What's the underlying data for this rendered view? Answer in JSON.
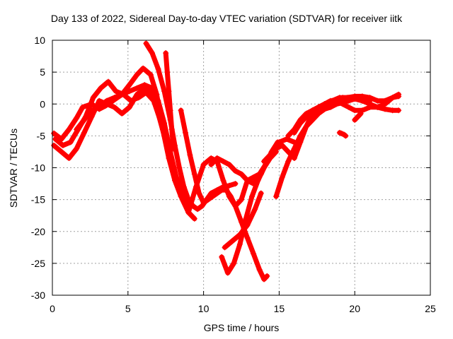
{
  "chart_data": {
    "type": "scatter",
    "title": "Day 133 of 2022, Sidereal Day-to-day VTEC variation (SDTVAR) for receiver iitk",
    "xlabel": "GPS time / hours",
    "ylabel": "SDTVAR / TECUs",
    "xlim": [
      0,
      25
    ],
    "ylim": [
      -30,
      10
    ],
    "xticks": [
      "0",
      "5",
      "10",
      "15",
      "20",
      "25"
    ],
    "yticks": [
      "10",
      "5",
      "0",
      "-5",
      "-10",
      "-15",
      "-20",
      "-25",
      "-30"
    ],
    "grid": true,
    "marker": "+",
    "color": "#ff0000",
    "series": [
      {
        "x": [
          0.1,
          0.6,
          1.1,
          1.6,
          2.0,
          2.6,
          3.1,
          3.5,
          4.0,
          4.6,
          5.1,
          5.6,
          6.0,
          6.5,
          6.9,
          7.3,
          7.7,
          8.1,
          8.5,
          8.9
        ],
        "y": [
          -4.6,
          -5.5,
          -4.0,
          -2.2,
          -0.5,
          0.0,
          -0.8,
          -0.3,
          0.5,
          1.5,
          3.0,
          4.6,
          5.6,
          4.6,
          1.5,
          -4.0,
          -8.5,
          -12.0,
          -14.5,
          -16.0
        ]
      },
      {
        "x": [
          0.1,
          0.6,
          1.1,
          1.6,
          2.1,
          2.6,
          3.1,
          3.6,
          4.1,
          4.6,
          5.1,
          5.6,
          6.1,
          6.6,
          7.0,
          7.4,
          7.8,
          8.2,
          8.6,
          9.0,
          9.4
        ],
        "y": [
          -6.5,
          -7.5,
          -8.5,
          -7.0,
          -4.5,
          -2.0,
          0.5,
          0.0,
          -0.5,
          -1.5,
          -0.5,
          1.5,
          2.5,
          1.5,
          -1.5,
          -5.0,
          -9.0,
          -12.5,
          -15.0,
          -17.0,
          -18.0
        ]
      },
      {
        "x": [
          0.2,
          0.7,
          1.2,
          1.7,
          2.2,
          2.7,
          3.2,
          3.7,
          4.2,
          4.7,
          5.2,
          5.7,
          6.2,
          6.7,
          7.2,
          7.6,
          8.0,
          8.4,
          8.8
        ],
        "y": [
          -5.5,
          -6.5,
          -6.0,
          -4.0,
          -2.0,
          1.0,
          2.5,
          3.5,
          2.0,
          1.5,
          0.5,
          1.0,
          1.8,
          0.5,
          -3.0,
          -6.5,
          -10.5,
          -13.5,
          -15.5
        ]
      },
      {
        "x": [
          1.6,
          2.1,
          2.6,
          3.1,
          3.6,
          4.1,
          4.6,
          5.1,
          5.6,
          6.1,
          6.6,
          7.0,
          7.4,
          7.8,
          8.2,
          8.6
        ],
        "y": [
          -4.0,
          -2.5,
          -1.0,
          -0.5,
          0.5,
          1.0,
          1.5,
          2.0,
          2.5,
          3.0,
          2.5,
          0.5,
          -3.0,
          -7.5,
          -11.5,
          -14.0
        ]
      },
      {
        "x": [
          6.2,
          6.6,
          7.0,
          7.4,
          7.8,
          8.1,
          8.4,
          8.7,
          9.0,
          9.3,
          9.6,
          9.9,
          10.2,
          10.5,
          10.9,
          11.3,
          11.7,
          12.1
        ],
        "y": [
          9.5,
          8.0,
          5.5,
          2.0,
          -2.5,
          -6.5,
          -10.0,
          -13.0,
          -15.0,
          -16.0,
          -16.5,
          -16.0,
          -15.0,
          -14.0,
          -13.5,
          -13.0,
          -12.8,
          -12.5
        ]
      },
      {
        "x": [
          7.5,
          7.6,
          7.7,
          7.8,
          7.9,
          8.0
        ],
        "y": [
          8.0,
          5.0,
          2.0,
          -1.0,
          -4.0,
          -7.0
        ]
      },
      {
        "x": [
          8.5,
          8.8,
          9.1,
          9.4,
          9.7,
          10.0,
          10.3,
          10.6,
          10.9,
          11.2,
          11.5,
          11.8,
          12.1,
          12.5,
          12.9,
          13.3,
          13.7,
          14.0,
          14.2
        ],
        "y": [
          -1.0,
          -4.5,
          -8.0,
          -11.0,
          -14.0,
          -15.5,
          -15.0,
          -14.5,
          -14.0,
          -13.5,
          -13.5,
          -14.5,
          -16.0,
          -18.5,
          -21.0,
          -23.5,
          -26.0,
          -27.5,
          -27.0
        ]
      },
      {
        "x": [
          9.0,
          9.5,
          10.0,
          10.5,
          10.9,
          11.3,
          11.7,
          12.1,
          12.5,
          12.9,
          13.3,
          13.7,
          14.1,
          14.5,
          14.9
        ],
        "y": [
          -17.0,
          -13.0,
          -9.5,
          -8.5,
          -9.0,
          -12.0,
          -14.5,
          -16.0,
          -15.0,
          -12.0,
          -11.5,
          -11.0,
          -9.5,
          -7.5,
          -6.0
        ]
      },
      {
        "x": [
          10.5,
          10.9,
          11.3,
          11.7,
          12.1,
          12.5,
          12.9,
          13.3,
          13.8,
          14.2,
          14.6,
          15.0,
          15.5,
          16.0
        ],
        "y": [
          -9.5,
          -8.5,
          -9.0,
          -9.5,
          -10.5,
          -11.0,
          -12.0,
          -12.5,
          -11.0,
          -9.0,
          -7.5,
          -6.0,
          -5.5,
          -6.0
        ]
      },
      {
        "x": [
          11.2,
          11.6,
          12.0,
          12.4,
          12.8,
          13.2,
          13.6,
          14.0,
          14.4,
          14.8
        ],
        "y": [
          -24.0,
          -26.5,
          -25.0,
          -22.0,
          -18.0,
          -14.5,
          -12.0,
          -10.0,
          -8.5,
          -7.5
        ]
      },
      {
        "x": [
          11.4,
          11.9,
          12.4,
          12.9,
          13.4,
          13.8
        ],
        "y": [
          -22.5,
          -21.5,
          -20.5,
          -19.0,
          -16.5,
          -14.0
        ]
      },
      {
        "x": [
          14.0,
          14.4,
          14.8,
          15.2,
          15.6,
          16.0,
          16.4,
          16.8,
          17.2,
          17.6,
          18.0,
          18.4,
          18.8,
          19.2,
          19.6,
          20.0,
          20.5,
          21.0,
          21.5,
          22.0,
          22.5,
          22.9
        ],
        "y": [
          -9.0,
          -8.0,
          -7.0,
          -6.5,
          -7.5,
          -8.5,
          -6.0,
          -3.5,
          -1.5,
          -0.5,
          0.0,
          0.5,
          0.5,
          0.0,
          -0.5,
          -1.0,
          -1.0,
          -0.5,
          -0.5,
          0.0,
          1.0,
          1.5
        ]
      },
      {
        "x": [
          14.8,
          15.2,
          15.6,
          16.0,
          16.4,
          16.8,
          17.2,
          17.6,
          18.0,
          18.4,
          18.8,
          19.2,
          19.6,
          20.0,
          20.5,
          21.0,
          21.5,
          22.0,
          22.5,
          22.9
        ],
        "y": [
          -14.5,
          -11.5,
          -9.0,
          -7.0,
          -5.0,
          -3.5,
          -2.5,
          -1.5,
          -0.8,
          -0.5,
          0.0,
          0.2,
          0.5,
          0.8,
          0.5,
          0.0,
          -0.5,
          -0.8,
          -1.0,
          -1.0
        ]
      },
      {
        "x": [
          15.6,
          16.0,
          16.4,
          16.8,
          17.2,
          17.6,
          18.0,
          18.4,
          18.8,
          19.2,
          19.6,
          20.0,
          20.5,
          21.0
        ],
        "y": [
          -5.0,
          -4.0,
          -2.5,
          -1.5,
          -1.0,
          -0.5,
          -0.5,
          0.0,
          0.5,
          1.0,
          1.0,
          1.0,
          0.5,
          0.5
        ]
      },
      {
        "x": [
          16.0,
          16.4,
          16.8,
          17.2,
          17.6,
          18.0,
          18.5,
          19.0,
          19.5,
          20.0,
          20.5,
          21.0,
          21.5,
          22.0,
          22.5,
          22.9
        ],
        "y": [
          -4.5,
          -3.0,
          -2.0,
          -1.0,
          -0.5,
          0.0,
          0.5,
          1.0,
          1.0,
          1.2,
          1.2,
          1.0,
          0.5,
          0.5,
          1.0,
          1.2
        ]
      },
      {
        "x": [
          19.0,
          19.1,
          19.2,
          19.3,
          19.4
        ],
        "y": [
          -4.5,
          -4.6,
          -4.7,
          -4.8,
          -5.0
        ]
      },
      {
        "x": [
          20.0,
          20.2,
          20.4
        ],
        "y": [
          -2.5,
          -2.0,
          -1.5
        ]
      }
    ]
  }
}
